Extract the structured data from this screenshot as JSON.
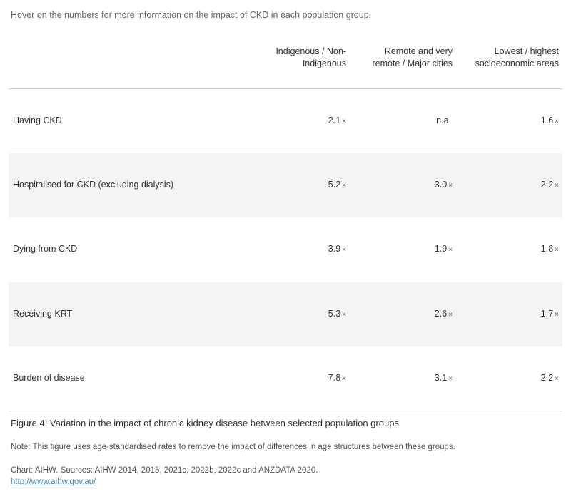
{
  "intro": "Hover on the numbers for more information on the impact of CKD in each population group.",
  "columns": [
    {
      "line1": "Indigenous / Non-",
      "line2": "Indigenous"
    },
    {
      "line1": "Remote and very",
      "line2": "remote / Major cities"
    },
    {
      "line1": "Lowest / highest",
      "line2": "socioeconomic areas"
    }
  ],
  "multiplier_symbol": "×",
  "rows": [
    {
      "label": "Having CKD",
      "values": [
        "2.1",
        "n.a.",
        "1.6"
      ],
      "mult": [
        "×",
        "",
        "×"
      ]
    },
    {
      "label": "Hospitalised for CKD (excluding dialysis)",
      "values": [
        "5.2",
        "3.0",
        "2.2"
      ],
      "mult": [
        "×",
        "×",
        "×"
      ]
    },
    {
      "label": "Dying from CKD",
      "values": [
        "3.9",
        "1.9",
        "1.8"
      ],
      "mult": [
        "×",
        "×",
        "×"
      ]
    },
    {
      "label": "Receiving KRT",
      "values": [
        "5.3",
        "2.6",
        "1.7"
      ],
      "mult": [
        "×",
        "×",
        "×"
      ]
    },
    {
      "label": "Burden of disease",
      "values": [
        "7.8",
        "3.1",
        "2.2"
      ],
      "mult": [
        "×",
        "×",
        "×"
      ]
    }
  ],
  "footer": {
    "title": "Figure 4: Variation in the impact of chronic kidney disease between selected population groups",
    "note": "Note: This figure uses age-standardised rates to remove the impact of differences in age structures between these groups.",
    "source": "Chart: AIHW. Sources: AIHW 2014, 2015, 2021c, 2022b, 2022c and ANZDATA 2020.",
    "link": "http://www.aihw.gov.au/"
  },
  "colors": {
    "row_alt": "#f4f4f4",
    "link": "#4a8db0"
  }
}
